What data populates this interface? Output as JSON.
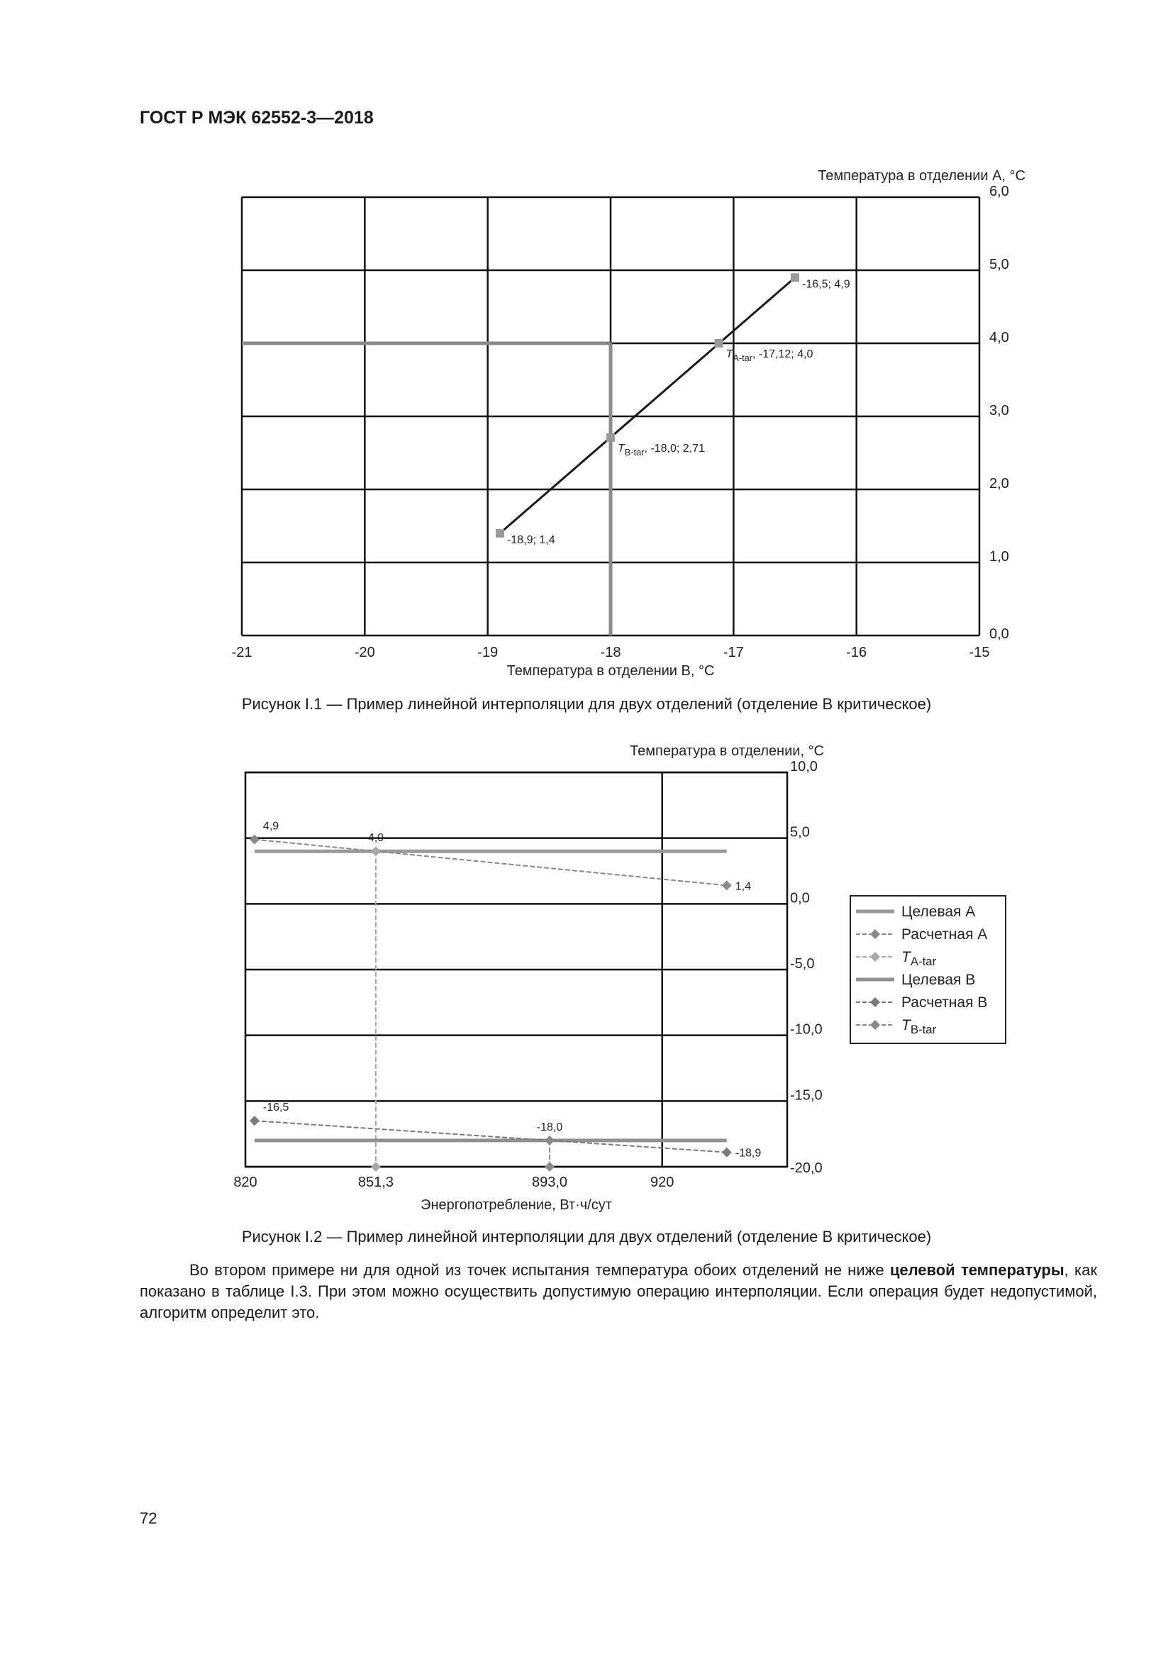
{
  "header": {
    "title": "ГОСТ Р МЭК 62552-3—2018"
  },
  "figure1": {
    "caption": "Рисунок I.1 — Пример линейной интерполяции для двух отделений (отделение В критическое)"
  },
  "figure2": {
    "caption": "Рисунок I.2 — Пример линейной интерполяции для двух отделений (отделение В критическое)"
  },
  "paragraph": {
    "part1": "Во втором примере ни для одной из точек испытания температура обоих отделений не ниже ",
    "bold": "целевой температуры",
    "part2": ", как показано в таблице I.3. При этом можно осуществить допустимую операцию интерполяции. Если операция будет недопустимой, алгоритм определит это."
  },
  "page_number": "72",
  "chart_data": [
    {
      "type": "line",
      "xlabel": "Температура в отделении В, °С",
      "ylabel": "Температура в отделении А, °С",
      "xlim": [
        -21,
        -15
      ],
      "ylim": [
        0,
        6
      ],
      "x_ticks": [
        "-21",
        "-20",
        "-19",
        "-18",
        "-17",
        "-16",
        "-15"
      ],
      "y_ticks": [
        "0,0",
        "1,0",
        "2,0",
        "3,0",
        "4,0",
        "5,0",
        "6,0"
      ],
      "grid": true,
      "y_axis_side": "right",
      "series": [
        {
          "points": [
            [
              -18.9,
              1.4
            ],
            [
              -16.5,
              4.9
            ]
          ],
          "color": "#1a1a1a"
        }
      ],
      "reference_lines": [
        {
          "type": "horizontal",
          "y": 4.0,
          "x_from": -21,
          "x_to": -18,
          "color": "#8a8a8a"
        },
        {
          "type": "vertical",
          "x": -18,
          "y_from": 0,
          "y_to": 4.0,
          "color": "#8a8a8a"
        }
      ],
      "annotations": [
        {
          "x": -18.9,
          "y": 1.4,
          "symbol": "",
          "sub": "",
          "text": "-18,9; 1,4"
        },
        {
          "x": -18.0,
          "y": 2.71,
          "symbol": "T",
          "sub": "B-tar",
          "text": "-18,0; 2,71"
        },
        {
          "x": -17.12,
          "y": 4.0,
          "symbol": "T",
          "sub": "A-tar",
          "text": "-17,12; 4,0"
        },
        {
          "x": -16.5,
          "y": 4.9,
          "symbol": "",
          "sub": "",
          "text": "-16,5; 4,9"
        }
      ]
    },
    {
      "type": "line",
      "xlabel": "Энергопотребление, Вт·ч/сут",
      "ylabel": "Температура в отделении, °С",
      "xlim": [
        820,
        950
      ],
      "ylim": [
        -20,
        10
      ],
      "x_ticks": [
        {
          "v": 820,
          "label": "820"
        },
        {
          "v": 851.3,
          "label": "851,3"
        },
        {
          "v": 893.0,
          "label": "893,0"
        },
        {
          "v": 920,
          "label": "920"
        }
      ],
      "y_ticks": [
        {
          "v": 10,
          "label": "10,0"
        },
        {
          "v": 5,
          "label": "5,0"
        },
        {
          "v": 0,
          "label": "0,0"
        },
        {
          "v": -5,
          "label": "-5,0"
        },
        {
          "v": -10,
          "label": "-10,0"
        },
        {
          "v": -15,
          "label": "-15,0"
        },
        {
          "v": -20,
          "label": "-20,0"
        }
      ],
      "grid": true,
      "y_axis_side": "right",
      "legend_position": "right",
      "series": [
        {
          "name": "Целевая A",
          "style": "solid",
          "color": "#9a9a9a",
          "points": [
            [
              822.2,
              4.0
            ],
            [
              935.5,
              4.0
            ]
          ]
        },
        {
          "name": "Расчетная A",
          "style": "dashed-marker",
          "color": "#8a8a8a",
          "points": [
            [
              822.2,
              4.9
            ],
            [
              935.5,
              1.4
            ]
          ],
          "labels": [
            "4,9",
            "1,4"
          ]
        },
        {
          "name": "T",
          "sub": "A-tar",
          "style": "dashed-marker",
          "color": "#a8a8a8",
          "points": [
            [
              851.3,
              4.0
            ],
            [
              851.3,
              -20
            ]
          ],
          "labels": [
            "4,0",
            ""
          ]
        },
        {
          "name": "Целевая B",
          "style": "solid",
          "color": "#8f8f8f",
          "points": [
            [
              822.2,
              -18.0
            ],
            [
              935.5,
              -18.0
            ]
          ]
        },
        {
          "name": "Расчетная B",
          "style": "dashed-marker",
          "color": "#7a7a7a",
          "points": [
            [
              822.2,
              -16.5
            ],
            [
              935.5,
              -18.9
            ]
          ],
          "labels": [
            "-16,5",
            "-18,9"
          ]
        },
        {
          "name": "T",
          "sub": "B-tar",
          "style": "dashed-marker",
          "color": "#8a8a8a",
          "points": [
            [
              893.0,
              -18.0
            ],
            [
              893.0,
              -20
            ]
          ],
          "labels": [
            "-18,0",
            ""
          ]
        }
      ]
    }
  ]
}
